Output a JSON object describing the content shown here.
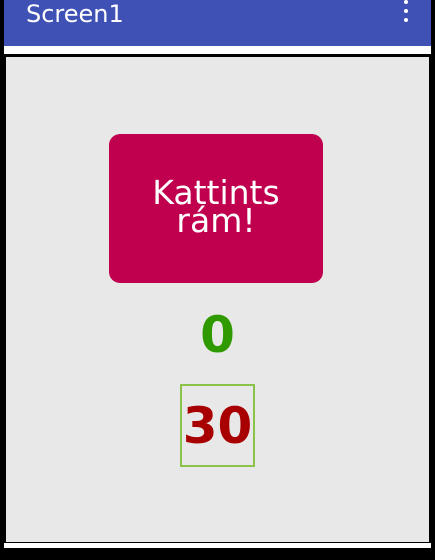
{
  "app_bar": {
    "title": "Screen1",
    "background_color": "#3f51b5",
    "menu_icon": "more-vert-icon"
  },
  "screen": {
    "background_color": "#e8e8e8"
  },
  "click_button": {
    "label": "Kattints rám!",
    "background_color": "#c0004e"
  },
  "counter": {
    "value": "0",
    "color": "#2e9a00"
  },
  "timer": {
    "value": "30",
    "color": "#a80000",
    "border_color": "#8bc34a"
  }
}
